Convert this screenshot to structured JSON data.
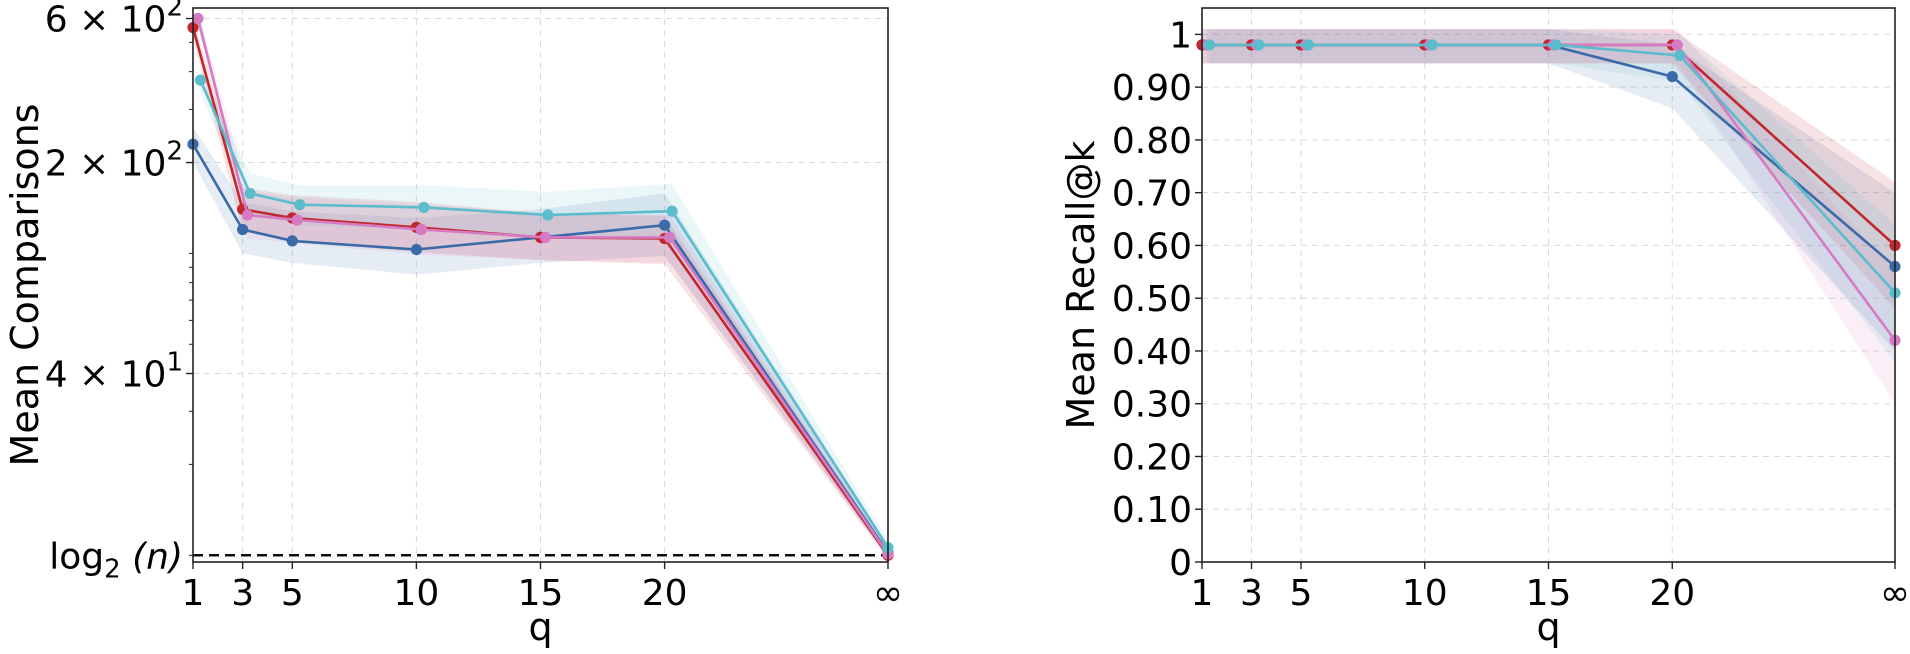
{
  "chart_data": [
    {
      "type": "line",
      "ylabel": "Mean Comparisons",
      "xlabel": "q",
      "yscale": "log",
      "x_categories": [
        "1",
        "3",
        "5",
        "10",
        "15",
        "20",
        "∞"
      ],
      "x_positions": [
        1,
        3,
        5,
        10,
        15,
        20,
        29
      ],
      "xlim": [
        1,
        29
      ],
      "ylim": [
        9.5,
        650
      ],
      "yticks": [
        {
          "value": 600,
          "label_base": "6 × 10",
          "label_exp": "2"
        },
        {
          "value": 200,
          "label_base": "2 × 10",
          "label_exp": "2"
        },
        {
          "value": 40,
          "label_base": "4 × 10",
          "label_exp": "1"
        }
      ],
      "reference_line": {
        "value": 10,
        "label_func": "log",
        "label_sub": "2",
        "label_arg": "(n)",
        "style": "dashed",
        "color": "#111111"
      },
      "series": [
        {
          "name": "series-blue",
          "color": "#3b6aa8",
          "x": [
            1,
            3,
            5,
            10,
            15,
            20,
            29
          ],
          "values": [
            230,
            120,
            110,
            103,
            113,
            124,
            10.2
          ],
          "lower": [
            200,
            100,
            93,
            85,
            93,
            98,
            9.8
          ],
          "upper": [
            262,
            148,
            138,
            131,
            140,
            158,
            10.8
          ]
        },
        {
          "name": "series-red",
          "color": "#c1272d",
          "x": [
            1,
            3,
            5,
            10,
            15,
            20,
            29
          ],
          "values": [
            560,
            140,
            131,
            122,
            113,
            112,
            10.0
          ],
          "lower": [
            520,
            118,
            110,
            101,
            95,
            92,
            9.7
          ],
          "upper": [
            600,
            165,
            156,
            148,
            136,
            133,
            10.4
          ]
        },
        {
          "name": "series-pink",
          "color": "#d77ac4",
          "x": [
            1.2,
            3.2,
            5.2,
            10.2,
            15.2,
            20.2,
            29
          ],
          "values": [
            600,
            134,
            129,
            120,
            113,
            113,
            10.1
          ],
          "lower": [
            560,
            112,
            108,
            99,
            95,
            93,
            9.8
          ],
          "upper": [
            640,
            160,
            153,
            145,
            136,
            134,
            10.5
          ]
        },
        {
          "name": "series-cyan",
          "color": "#5bbccc",
          "x": [
            1.3,
            3.3,
            5.3,
            10.3,
            15.3,
            20.3,
            29
          ],
          "values": [
            375,
            158,
            145,
            142,
            134,
            138,
            10.6
          ],
          "lower": [
            340,
            135,
            124,
            120,
            112,
            113,
            10.1
          ],
          "upper": [
            410,
            184,
            168,
            168,
            160,
            170,
            11.2
          ]
        }
      ]
    },
    {
      "type": "line",
      "ylabel": "Mean Recall@k",
      "xlabel": "q",
      "x_categories": [
        "1",
        "3",
        "5",
        "10",
        "15",
        "20",
        "∞"
      ],
      "x_positions": [
        1,
        3,
        5,
        10,
        15,
        20,
        29
      ],
      "xlim": [
        1,
        29
      ],
      "ylim": [
        0,
        1.05
      ],
      "yticks": [
        {
          "value": 0,
          "label": "0"
        },
        {
          "value": 0.1,
          "label": "0.10"
        },
        {
          "value": 0.2,
          "label": "0.20"
        },
        {
          "value": 0.3,
          "label": "0.30"
        },
        {
          "value": 0.4,
          "label": "0.40"
        },
        {
          "value": 0.5,
          "label": "0.50"
        },
        {
          "value": 0.6,
          "label": "0.60"
        },
        {
          "value": 0.7,
          "label": "0.70"
        },
        {
          "value": 0.8,
          "label": "0.80"
        },
        {
          "value": 0.9,
          "label": "0.90"
        },
        {
          "value": 1.0,
          "label": "1"
        }
      ],
      "series": [
        {
          "name": "series-blue",
          "color": "#3b6aa8",
          "x": [
            1,
            3,
            5,
            10,
            15,
            20,
            29
          ],
          "values": [
            0.98,
            0.98,
            0.98,
            0.98,
            0.98,
            0.92,
            0.56
          ],
          "lower": [
            0.945,
            0.945,
            0.945,
            0.945,
            0.945,
            0.86,
            0.4
          ],
          "upper": [
            1.01,
            1.01,
            1.01,
            1.01,
            1.01,
            0.98,
            0.7
          ]
        },
        {
          "name": "series-red",
          "color": "#c1272d",
          "x": [
            1,
            3,
            5,
            10,
            15,
            20,
            29
          ],
          "values": [
            0.98,
            0.98,
            0.98,
            0.98,
            0.98,
            0.98,
            0.6
          ],
          "lower": [
            0.945,
            0.945,
            0.945,
            0.945,
            0.945,
            0.945,
            0.48
          ],
          "upper": [
            1.01,
            1.01,
            1.01,
            1.01,
            1.01,
            1.01,
            0.72
          ]
        },
        {
          "name": "series-pink",
          "color": "#d77ac4",
          "x": [
            1.2,
            3.2,
            5.2,
            10.2,
            15.2,
            20.2,
            29
          ],
          "values": [
            0.98,
            0.98,
            0.98,
            0.98,
            0.98,
            0.98,
            0.42
          ],
          "lower": [
            0.945,
            0.945,
            0.945,
            0.945,
            0.945,
            0.945,
            0.3
          ],
          "upper": [
            1.01,
            1.01,
            1.01,
            1.01,
            1.01,
            1.01,
            0.55
          ]
        },
        {
          "name": "series-cyan",
          "color": "#5bbccc",
          "x": [
            1.3,
            3.3,
            5.3,
            10.3,
            15.3,
            20.3,
            29
          ],
          "values": [
            0.98,
            0.98,
            0.98,
            0.98,
            0.98,
            0.96,
            0.51
          ],
          "lower": [
            0.945,
            0.945,
            0.945,
            0.945,
            0.945,
            0.91,
            0.38
          ],
          "upper": [
            1.01,
            1.01,
            1.01,
            1.01,
            1.01,
            1.0,
            0.64
          ]
        }
      ]
    }
  ]
}
